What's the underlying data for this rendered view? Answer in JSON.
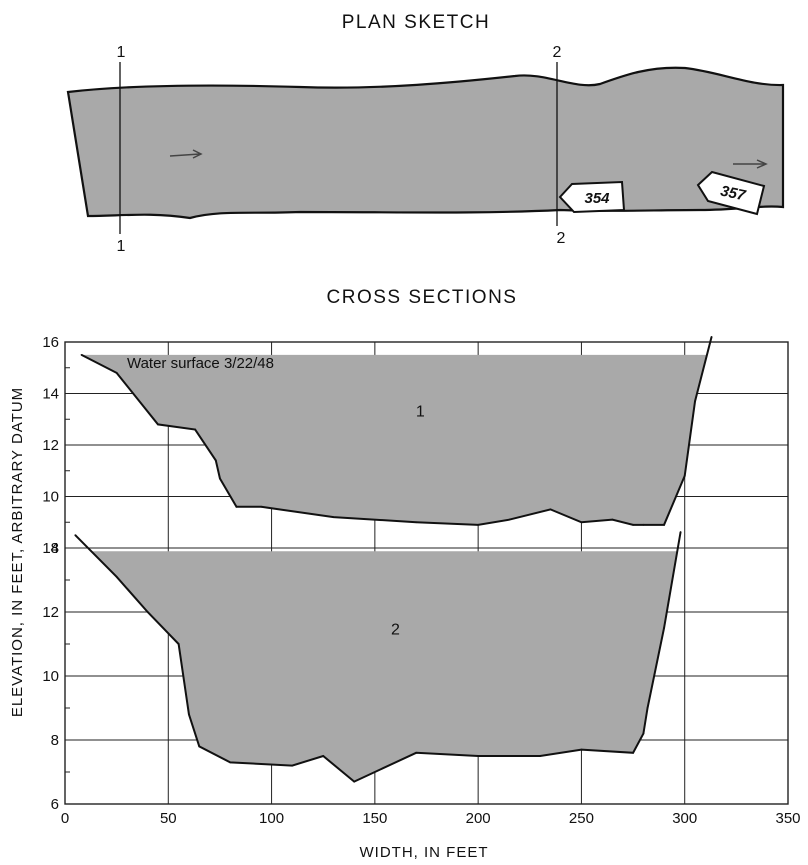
{
  "plan": {
    "title": "PLAN SKETCH",
    "sections": [
      {
        "top_label": "1",
        "bottom_label": "1"
      },
      {
        "top_label": "2",
        "bottom_label": "2"
      }
    ],
    "markers": [
      "354",
      "357"
    ]
  },
  "chart_data": {
    "type": "area",
    "title": "CROSS SECTIONS",
    "xlabel": "WIDTH, IN FEET",
    "ylabel": "ELEVATION, IN FEET, ARBITRARY DATUM",
    "xlim": [
      0,
      350
    ],
    "x_ticks": [
      "0",
      "50",
      "100",
      "150",
      "200",
      "250",
      "300",
      "350"
    ],
    "grid": true,
    "annotation": "Water surface 3/22/48",
    "panels": [
      {
        "name": "1",
        "ylim": [
          8,
          16
        ],
        "y_ticks": [
          "8",
          "10",
          "12",
          "14",
          "16"
        ],
        "water_surface": 15.5,
        "x": [
          8,
          25,
          45,
          63,
          73,
          75,
          83,
          95,
          130,
          170,
          200,
          215,
          235,
          250,
          265,
          275,
          280,
          290,
          300,
          305,
          313
        ],
        "y": [
          15.5,
          14.8,
          12.8,
          12.6,
          11.4,
          10.7,
          9.6,
          9.6,
          9.2,
          9.0,
          8.9,
          9.1,
          9.5,
          9.0,
          9.1,
          8.9,
          8.9,
          8.9,
          10.8,
          13.7,
          16.2
        ]
      },
      {
        "name": "2",
        "ylim": [
          6,
          14
        ],
        "y_ticks": [
          "6",
          "8",
          "10",
          "12",
          "14"
        ],
        "water_surface": 13.9,
        "x": [
          5,
          25,
          40,
          55,
          60,
          65,
          80,
          110,
          125,
          140,
          170,
          200,
          230,
          250,
          275,
          280,
          282,
          290,
          298
        ],
        "y": [
          14.4,
          13.1,
          12.0,
          11.0,
          8.8,
          7.8,
          7.3,
          7.2,
          7.5,
          6.7,
          7.6,
          7.5,
          7.5,
          7.7,
          7.6,
          8.2,
          9.0,
          11.5,
          14.5
        ]
      }
    ]
  }
}
